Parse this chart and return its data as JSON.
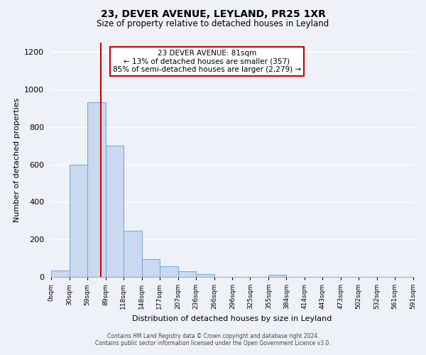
{
  "title": "23, DEVER AVENUE, LEYLAND, PR25 1XR",
  "subtitle": "Size of property relative to detached houses in Leyland",
  "xlabel": "Distribution of detached houses by size in Leyland",
  "ylabel": "Number of detached properties",
  "bar_values": [
    35,
    600,
    930,
    700,
    245,
    95,
    55,
    30,
    15,
    0,
    0,
    0,
    10,
    0,
    0,
    0,
    0,
    0,
    0,
    0
  ],
  "tick_labels": [
    "0sqm",
    "30sqm",
    "59sqm",
    "89sqm",
    "118sqm",
    "148sqm",
    "177sqm",
    "207sqm",
    "236sqm",
    "266sqm",
    "296sqm",
    "325sqm",
    "355sqm",
    "384sqm",
    "414sqm",
    "443sqm",
    "473sqm",
    "502sqm",
    "532sqm",
    "561sqm",
    "591sqm"
  ],
  "bar_color": "#c9d9f0",
  "bar_edge_color": "#7bafd4",
  "vline_x": 81,
  "vline_color": "#cc0000",
  "ylim": [
    0,
    1250
  ],
  "yticks": [
    0,
    200,
    400,
    600,
    800,
    1000,
    1200
  ],
  "annotation_title": "23 DEVER AVENUE: 81sqm",
  "annotation_line1": "← 13% of detached houses are smaller (357)",
  "annotation_line2": "85% of semi-detached houses are larger (2,279) →",
  "annotation_box_color": "#ffffff",
  "annotation_box_edge_color": "#cc0000",
  "footer_line1": "Contains HM Land Registry data © Crown copyright and database right 2024.",
  "footer_line2": "Contains public sector information licensed under the Open Government Licence v3.0.",
  "background_color": "#eef2f8"
}
